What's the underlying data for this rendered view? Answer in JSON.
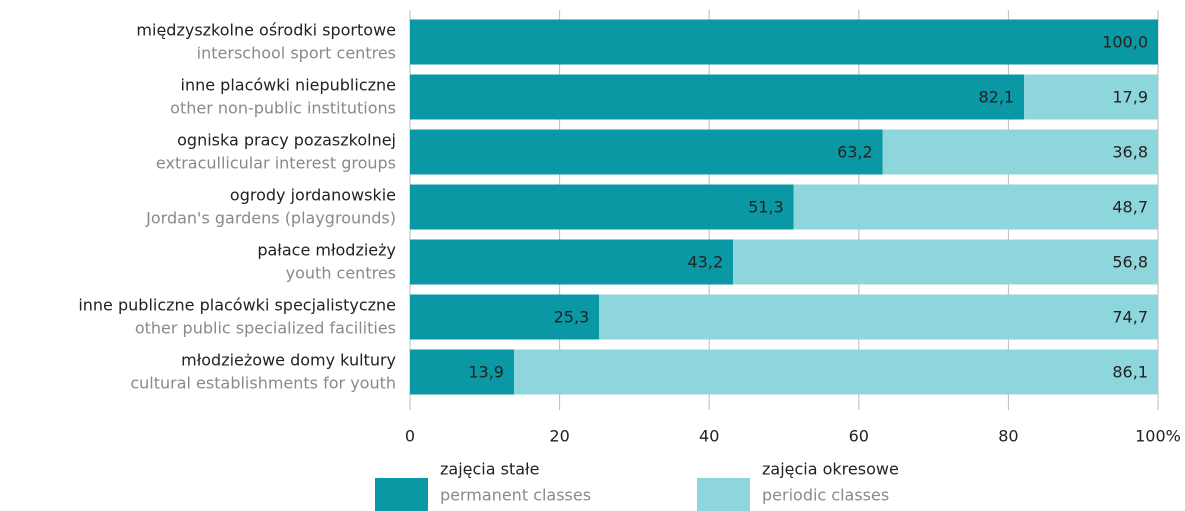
{
  "chart_data": {
    "type": "stacked_barh",
    "categories": [
      [
        "międzyszkolne ośrodki sportowe",
        "interschool sport centres"
      ],
      [
        "inne placówki niepubliczne",
        "other non-public institutions"
      ],
      [
        "ogniska pracy pozaszkolnej",
        "extracullicular interest groups"
      ],
      [
        "ogrody jordanowskie",
        "Jordan's gardens (playgrounds)"
      ],
      [
        "pałace młodzieży",
        "youth centres"
      ],
      [
        "inne publiczne placówki specjalistyczne",
        "other public specialized facilities"
      ],
      [
        "młodzieżowe domy kultury",
        "cultural establishments for youth"
      ]
    ],
    "series": [
      {
        "name": [
          "zajęcia stałe",
          "permanent classes"
        ],
        "color": "#0a98a5",
        "values": [
          100,
          82.1,
          63.2,
          51.3,
          43.2,
          25.3,
          13.9
        ],
        "value_labels": [
          "100,0",
          "82,1",
          "63,2",
          "51,3",
          "43,2",
          "25,3",
          "13,9"
        ]
      },
      {
        "name": [
          "zajęcia okresowe",
          "periodic classes"
        ],
        "color": "#8dd6dc",
        "values": [
          0,
          17.9,
          36.8,
          48.7,
          56.8,
          74.7,
          86.1
        ],
        "value_labels": [
          null,
          "17,9",
          "36,8",
          "48,7",
          "56,8",
          "74,7",
          "86,1"
        ]
      }
    ],
    "xlim": [
      0,
      100
    ],
    "xticks": [
      0,
      20,
      40,
      60,
      80,
      {
        "value": 100,
        "label": "100%"
      }
    ],
    "grid": true
  }
}
